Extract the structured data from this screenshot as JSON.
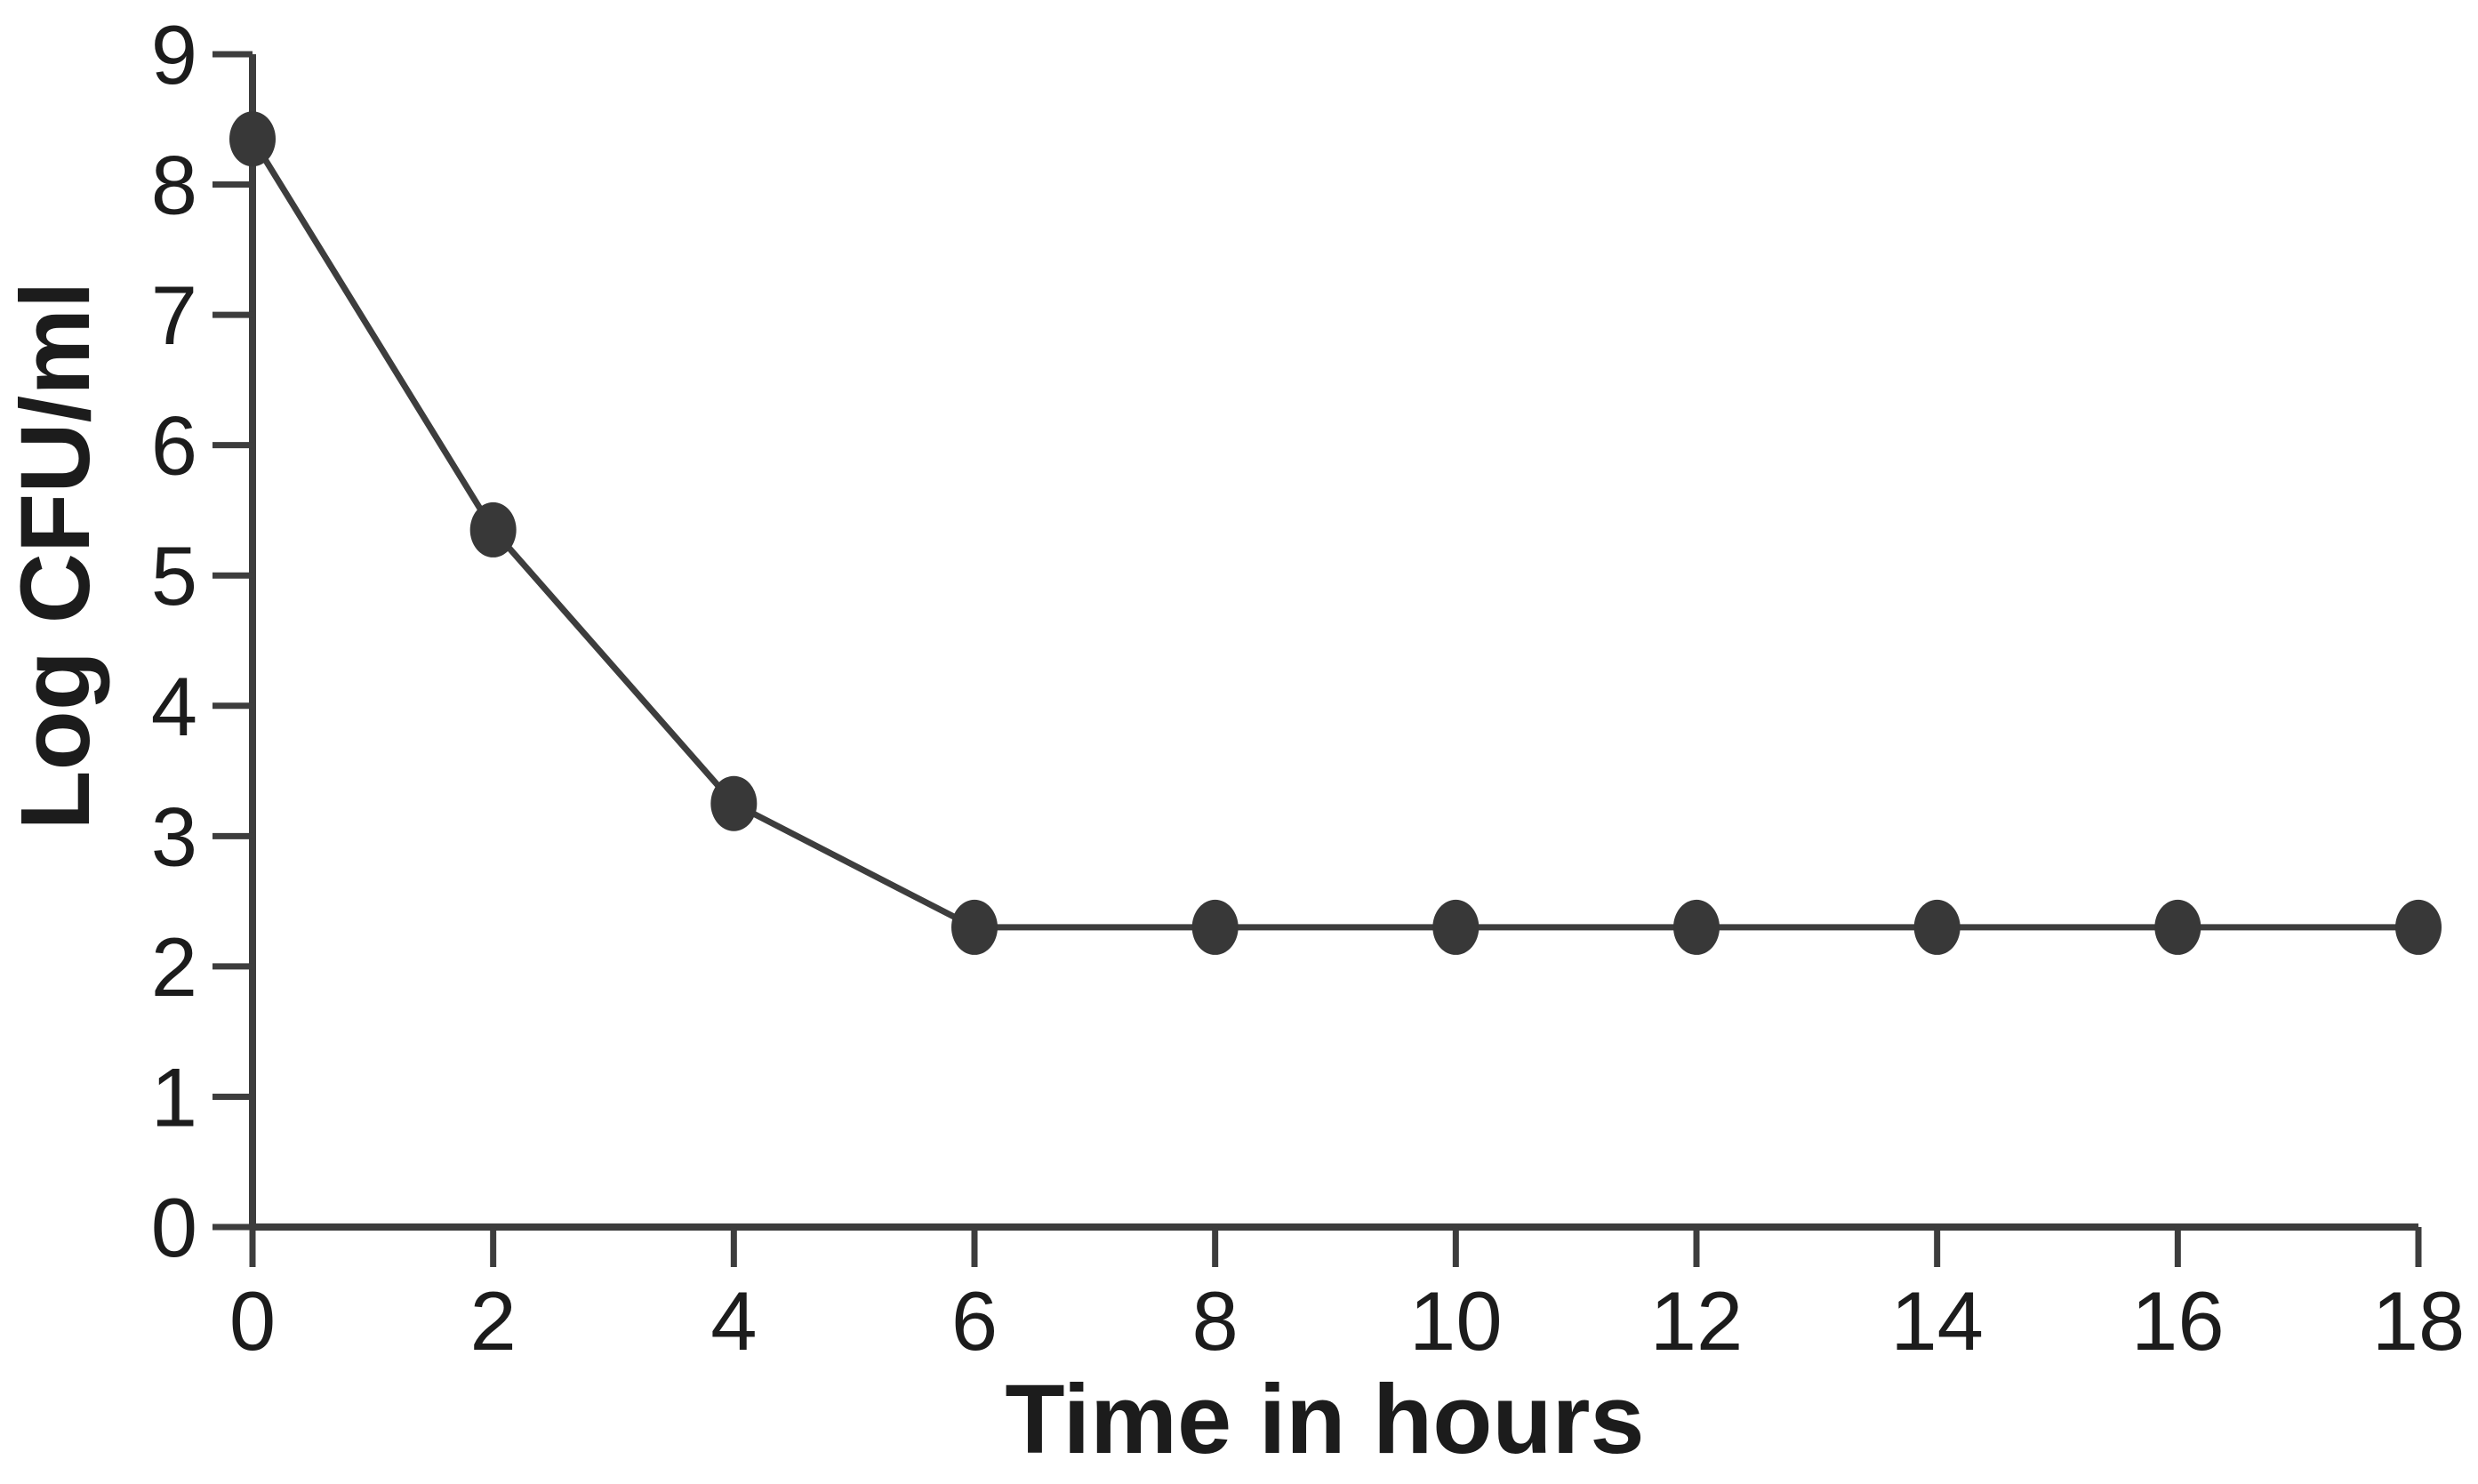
{
  "chart_data": {
    "type": "line",
    "title": "",
    "xlabel": "Time in hours",
    "ylabel": "Log CFU/ml",
    "x": [
      0,
      2,
      4,
      6,
      8,
      10,
      12,
      14,
      16,
      18
    ],
    "y": [
      8.35,
      5.35,
      3.25,
      2.3,
      2.3,
      2.3,
      2.3,
      2.3,
      2.3,
      2.3
    ],
    "xticks": [
      0,
      2,
      4,
      6,
      8,
      10,
      12,
      14,
      16,
      18
    ],
    "yticks": [
      0,
      1,
      2,
      3,
      4,
      5,
      6,
      7,
      8,
      9
    ],
    "xlim": [
      0,
      18
    ],
    "ylim": [
      0,
      9
    ],
    "grid": false,
    "legend": false,
    "marker": "filled-circle",
    "line_color": "#3d3d3d",
    "marker_color": "#383838",
    "axis_color": "#3d3d3d",
    "text_color": "#1c1c1c",
    "background_color": "#ffffff"
  }
}
